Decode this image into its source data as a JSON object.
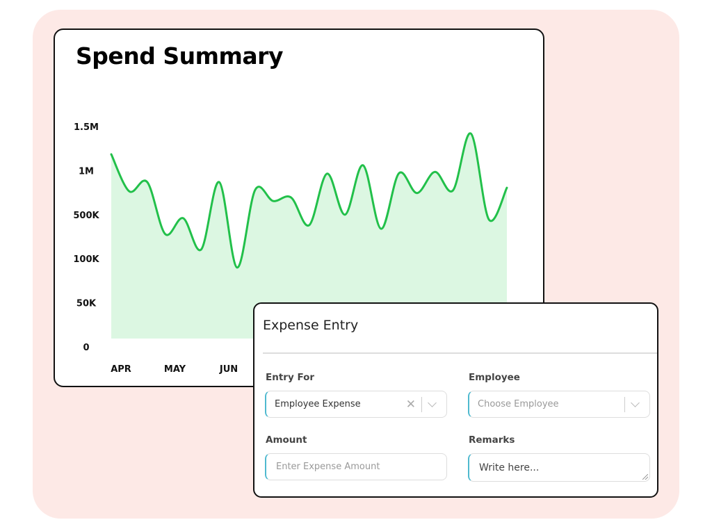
{
  "chart_data": {
    "type": "area",
    "title": "Spend Summary",
    "xlabel": "",
    "ylabel": "",
    "y_ticks": [
      "0",
      "50K",
      "100K",
      "500K",
      "1M",
      "1.5M"
    ],
    "y_tick_values": [
      0,
      50000,
      100000,
      500000,
      1000000,
      1500000
    ],
    "y_scale": "categorical-piecewise (evenly spaced ticks)",
    "x_ticks": [
      "APR",
      "MAY",
      "JUN"
    ],
    "grid": false,
    "legend": "none",
    "colors": {
      "line": "#22c04a",
      "fill": "#dcf7e2"
    },
    "series": [
      {
        "values": [
          1185000,
          765000,
          870000,
          324000,
          468000,
          184000,
          870000,
          90000,
          780000,
          655000,
          695000,
          404000,
          965000,
          500000,
          1060000,
          372000,
          970000,
          745000,
          985000,
          775000,
          1420000,
          456000,
          805000
        ]
      }
    ]
  },
  "form": {
    "title": "Expense Entry",
    "entry_for": {
      "label": "Entry For",
      "value": "Employee Expense"
    },
    "employee": {
      "label": "Employee",
      "placeholder": "Choose Employee"
    },
    "amount": {
      "label": "Amount",
      "placeholder": "Enter Expense Amount"
    },
    "remarks": {
      "label": "Remarks",
      "placeholder": "Write here..."
    },
    "clear_icon": "x-icon",
    "dropdown_icon": "chevron-down-icon"
  }
}
